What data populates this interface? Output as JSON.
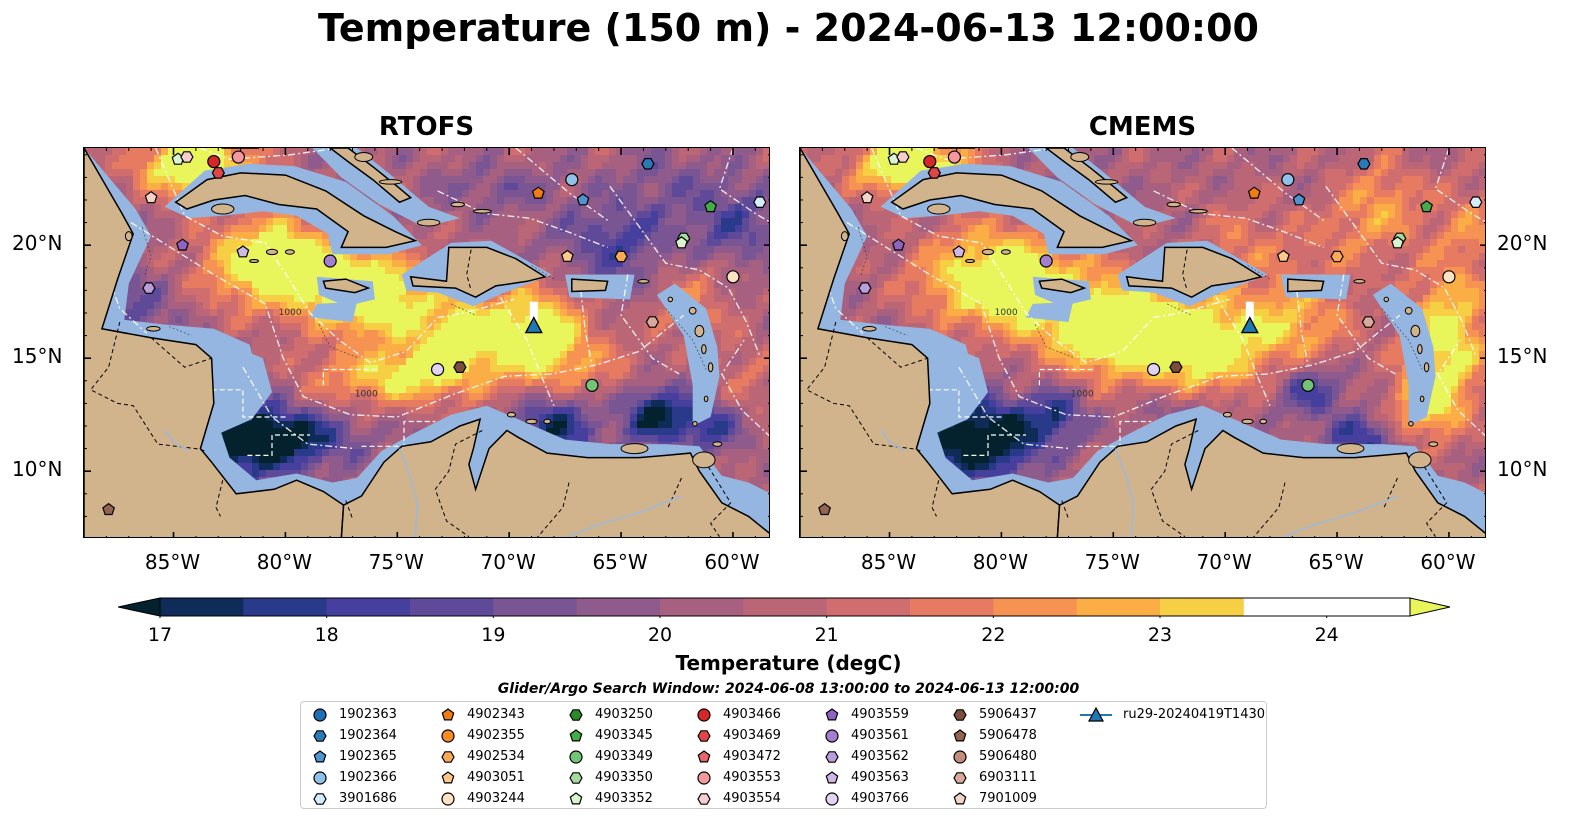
{
  "title": "Temperature (150 m) - 2024-06-13 12:00:00",
  "panels": [
    {
      "title": "RTOFS",
      "variant": "rtofs"
    },
    {
      "title": "CMEMS",
      "variant": "cmems"
    }
  ],
  "axes": {
    "lon_ticks": [
      "85°W",
      "80°W",
      "75°W",
      "70°W",
      "65°W",
      "60°W"
    ],
    "lon_values": [
      -85,
      -80,
      -75,
      -70,
      -65,
      -60
    ],
    "lat_ticks": [
      "20°N",
      "15°N",
      "10°N"
    ],
    "lat_values": [
      20,
      15,
      10
    ],
    "lon_range": [
      -89,
      -58.3
    ],
    "lat_range": [
      7,
      24.3
    ]
  },
  "contour_labels": [
    "1000",
    "1000"
  ],
  "colorbar": {
    "title": "Temperature (degC)",
    "ticks": [
      "17",
      "18",
      "19",
      "20",
      "21",
      "22",
      "23",
      "24"
    ],
    "tick_values": [
      17,
      18,
      19,
      20,
      21,
      22,
      23,
      24
    ],
    "range": [
      17,
      24.5
    ],
    "extend": "both",
    "colors": [
      "#04212e",
      "#0e2c57",
      "#2a3a8b",
      "#463f9e",
      "#5f4a9a",
      "#7a5594",
      "#8f5b8d",
      "#a7607f",
      "#bb6677",
      "#cf6d6f",
      "#e67b62",
      "#f69252",
      "#fbae45",
      "#f7cf44",
      "#e8f65c"
    ]
  },
  "search_window": "Glider/Argo Search Window: 2024-06-08 13:00:00 to 2024-06-13 12:00:00",
  "legend": [
    {
      "label": "1902363",
      "marker": "circle",
      "color": "#1f6fb4"
    },
    {
      "label": "1902364",
      "marker": "hexagon",
      "color": "#2a7ab8"
    },
    {
      "label": "1902365",
      "marker": "pentagon",
      "color": "#4d94d0"
    },
    {
      "label": "1902366",
      "marker": "circle",
      "color": "#8fc1ea"
    },
    {
      "label": "3901686",
      "marker": "hexagon",
      "color": "#d6ecfb"
    },
    {
      "label": "4902343",
      "marker": "pentagon",
      "color": "#f07c12"
    },
    {
      "label": "4902355",
      "marker": "circle",
      "color": "#fb8b23"
    },
    {
      "label": "4902534",
      "marker": "hexagon",
      "color": "#fba955"
    },
    {
      "label": "4903051",
      "marker": "pentagon",
      "color": "#fcc98b"
    },
    {
      "label": "4903244",
      "marker": "circle",
      "color": "#fde3c4"
    },
    {
      "label": "4903250",
      "marker": "hexagon",
      "color": "#2a8a2a"
    },
    {
      "label": "4903345",
      "marker": "pentagon",
      "color": "#44ac44"
    },
    {
      "label": "4903349",
      "marker": "circle",
      "color": "#74c476"
    },
    {
      "label": "4903350",
      "marker": "hexagon",
      "color": "#a6dba0"
    },
    {
      "label": "4903352",
      "marker": "pentagon",
      "color": "#d9f5d0"
    },
    {
      "label": "4903466",
      "marker": "circle",
      "color": "#d62728"
    },
    {
      "label": "4903469",
      "marker": "hexagon",
      "color": "#e0454a"
    },
    {
      "label": "4903472",
      "marker": "pentagon",
      "color": "#e8656a"
    },
    {
      "label": "4903553",
      "marker": "circle",
      "color": "#f4989b"
    },
    {
      "label": "4903554",
      "marker": "hexagon",
      "color": "#f9cccd"
    },
    {
      "label": "4903559",
      "marker": "pentagon",
      "color": "#8e63c4"
    },
    {
      "label": "4903561",
      "marker": "circle",
      "color": "#a27fd0"
    },
    {
      "label": "4903562",
      "marker": "hexagon",
      "color": "#b99ddc"
    },
    {
      "label": "4903563",
      "marker": "pentagon",
      "color": "#cdb8e6"
    },
    {
      "label": "4903766",
      "marker": "circle",
      "color": "#e2d3f3"
    },
    {
      "label": "5906437",
      "marker": "hexagon",
      "color": "#7a4e3b"
    },
    {
      "label": "5906478",
      "marker": "pentagon",
      "color": "#936451"
    },
    {
      "label": "5906480",
      "marker": "circle",
      "color": "#c08c7c"
    },
    {
      "label": "6903111",
      "marker": "hexagon",
      "color": "#d9aa9c"
    },
    {
      "label": "7901009",
      "marker": "pentagon",
      "color": "#f4d3c8"
    },
    {
      "label": "ru29-20240419T1430",
      "marker": "triangle-line",
      "color": "#1f77b4"
    }
  ],
  "floats": [
    {
      "lon": -84.8,
      "lat": 23.8,
      "marker": "pentagon",
      "color": "#d9f5d0"
    },
    {
      "lon": -84.4,
      "lat": 23.9,
      "marker": "hexagon",
      "color": "#f9cccd"
    },
    {
      "lon": -83.2,
      "lat": 23.7,
      "marker": "circle",
      "color": "#d62728"
    },
    {
      "lon": -83.0,
      "lat": 23.2,
      "marker": "hexagon",
      "color": "#e0454a"
    },
    {
      "lon": -82.1,
      "lat": 23.9,
      "marker": "circle",
      "color": "#f4989b"
    },
    {
      "lon": -86.0,
      "lat": 22.1,
      "marker": "pentagon",
      "color": "#f4d3c8"
    },
    {
      "lon": -84.6,
      "lat": 20.0,
      "marker": "pentagon",
      "color": "#8e63c4"
    },
    {
      "lon": -81.9,
      "lat": 19.7,
      "marker": "pentagon",
      "color": "#cdb8e6"
    },
    {
      "lon": -78.0,
      "lat": 19.3,
      "marker": "circle",
      "color": "#a27fd0"
    },
    {
      "lon": -86.1,
      "lat": 18.1,
      "marker": "hexagon",
      "color": "#b99ddc"
    },
    {
      "lon": -73.2,
      "lat": 14.5,
      "marker": "circle",
      "color": "#e2d3f3"
    },
    {
      "lon": -72.2,
      "lat": 14.6,
      "marker": "hexagon",
      "color": "#7a4e3b"
    },
    {
      "lon": -87.9,
      "lat": 8.3,
      "marker": "pentagon",
      "color": "#936451"
    },
    {
      "lon": -68.7,
      "lat": 22.3,
      "marker": "pentagon",
      "color": "#f07c12"
    },
    {
      "lon": -67.2,
      "lat": 22.9,
      "marker": "circle",
      "color": "#8fc1ea"
    },
    {
      "lon": -66.7,
      "lat": 22.0,
      "marker": "pentagon",
      "color": "#4d94d0"
    },
    {
      "lon": -63.8,
      "lat": 23.6,
      "marker": "hexagon",
      "color": "#2a7ab8"
    },
    {
      "lon": -61.0,
      "lat": 21.7,
      "marker": "pentagon",
      "color": "#44ac44"
    },
    {
      "lon": -58.8,
      "lat": 21.9,
      "marker": "hexagon",
      "color": "#d6ecfb"
    },
    {
      "lon": -67.4,
      "lat": 19.5,
      "marker": "pentagon",
      "color": "#fcc98b"
    },
    {
      "lon": -65.0,
      "lat": 19.5,
      "marker": "hexagon",
      "color": "#fba955"
    },
    {
      "lon": -62.2,
      "lat": 20.3,
      "marker": "hexagon",
      "color": "#a6dba0"
    },
    {
      "lon": -62.3,
      "lat": 20.1,
      "marker": "pentagon",
      "color": "#d9f5d0"
    },
    {
      "lon": -60.0,
      "lat": 18.6,
      "marker": "circle",
      "color": "#fde3c4"
    },
    {
      "lon": -63.6,
      "lat": 16.6,
      "marker": "hexagon",
      "color": "#d9aa9c"
    },
    {
      "lon": -66.3,
      "lat": 13.8,
      "marker": "circle",
      "color": "#74c476"
    }
  ],
  "glider": {
    "lon": -68.9,
    "lat": 16.4,
    "track_top_lat": 17.5,
    "color": "#1f77b4"
  }
}
